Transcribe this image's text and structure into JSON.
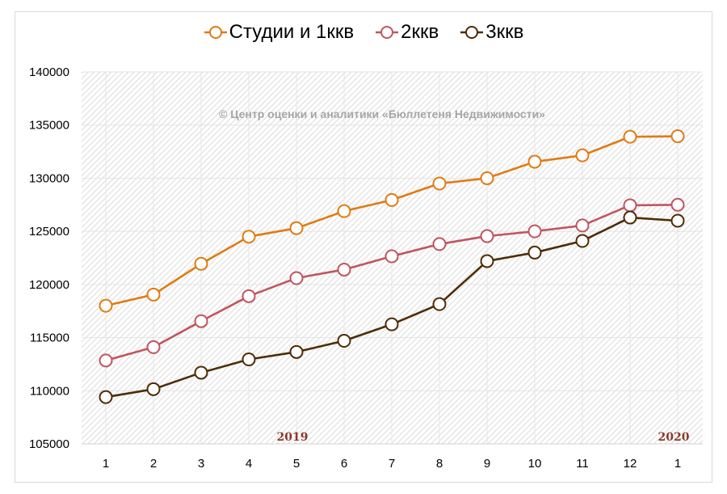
{
  "legend": [
    {
      "label": "Студии и 1ккв",
      "color": "#e07b14"
    },
    {
      "label": "2ккв",
      "color": "#c0565e"
    },
    {
      "label": "3ккв",
      "color": "#4f2c05"
    }
  ],
  "watermark": "© Центр оценки и аналитики «Бюллетеня Недвижимости»",
  "year_labels": [
    {
      "text": "2019",
      "at_index": 4
    },
    {
      "text": "2020",
      "at_index": 12
    }
  ],
  "chart_data": {
    "type": "line",
    "title": "",
    "xlabel": "",
    "ylabel": "",
    "categories": [
      "1",
      "2",
      "3",
      "4",
      "5",
      "6",
      "7",
      "8",
      "9",
      "10",
      "11",
      "12",
      "1"
    ],
    "category_years": [
      "2019",
      "2019",
      "2019",
      "2019",
      "2019",
      "2019",
      "2019",
      "2019",
      "2019",
      "2019",
      "2019",
      "2019",
      "2020"
    ],
    "ylim": [
      105000,
      140000
    ],
    "yticks": [
      105000,
      110000,
      115000,
      120000,
      125000,
      130000,
      135000,
      140000
    ],
    "grid": true,
    "legend_position": "top",
    "annotations": [
      "© Центр оценки и аналитики «Бюллетеня Недвижимости»",
      "2019",
      "2020"
    ],
    "series": [
      {
        "name": "Студии и 1ккв",
        "color": "#e07b14",
        "values": [
          118000,
          119050,
          121950,
          124500,
          125300,
          126900,
          127950,
          129500,
          130000,
          131550,
          132150,
          133900,
          133950
        ]
      },
      {
        "name": "2ккв",
        "color": "#c0565e",
        "values": [
          112850,
          114100,
          116550,
          118900,
          120600,
          121400,
          122650,
          123800,
          124550,
          125000,
          125550,
          127450,
          127500
        ]
      },
      {
        "name": "3ккв",
        "color": "#4f2c05",
        "values": [
          109400,
          110150,
          111700,
          112950,
          113650,
          114700,
          116250,
          118150,
          122200,
          123000,
          124100,
          126300,
          126000
        ]
      }
    ]
  }
}
